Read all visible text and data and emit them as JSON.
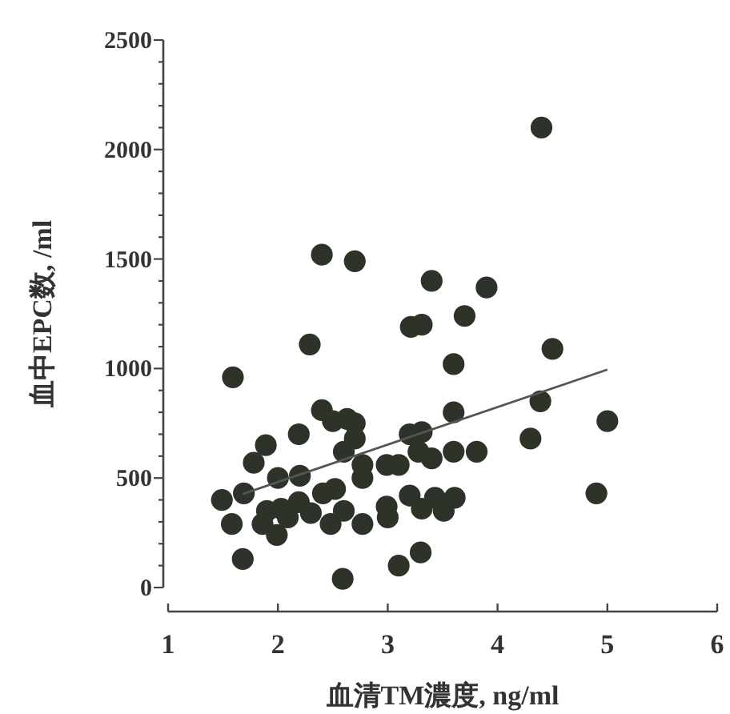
{
  "chart_data": {
    "type": "scatter",
    "xlabel": "血清TM濃度, ng/ml",
    "ylabel": "血中EPC数, /ml",
    "xlim": [
      1,
      6
    ],
    "ylim": [
      0,
      2500
    ],
    "xticks": [
      1,
      2,
      3,
      4,
      5,
      6
    ],
    "yticks": [
      0,
      {
        "value": 100,
        "label": null
      },
      {
        "value": 200,
        "label": null
      },
      {
        "value": 300,
        "label": null
      },
      {
        "value": 400,
        "label": null
      },
      500,
      {
        "value": 600,
        "label": null
      },
      {
        "value": 700,
        "label": null
      },
      {
        "value": 800,
        "label": null
      },
      {
        "value": 900,
        "label": null
      },
      1000,
      {
        "value": 1100,
        "label": null
      },
      {
        "value": 1200,
        "label": null
      },
      {
        "value": 1300,
        "label": null
      },
      {
        "value": 1400,
        "label": null
      },
      1500,
      {
        "value": 1600,
        "label": null
      },
      {
        "value": 1700,
        "label": null
      },
      {
        "value": 1800,
        "label": null
      },
      {
        "value": 1900,
        "label": null
      },
      2000,
      {
        "value": 2100,
        "label": null
      },
      {
        "value": 2200,
        "label": null
      },
      {
        "value": 2300,
        "label": null
      },
      {
        "value": 2400,
        "label": null
      },
      2500
    ],
    "grid": false,
    "series": [
      {
        "marker": "circle",
        "color": "#2d3328",
        "x": [
          4.4,
          2.4,
          2.7,
          3.4,
          3.9,
          3.21,
          3.31,
          3.7,
          2.29,
          4.5,
          1.59,
          3.6,
          4.39,
          3.6,
          5.0,
          2.4,
          2.5,
          2.63,
          2.7,
          2.19,
          1.89,
          1.78,
          2.7,
          2.6,
          3.2,
          3.31,
          4.3,
          3.28,
          3.4,
          3.6,
          3.81,
          2.99,
          3.1,
          2.77,
          2.77,
          2.0,
          2.2,
          1.49,
          1.69,
          1.9,
          2.03,
          2.19,
          2.3,
          2.41,
          2.52,
          2.48,
          2.6,
          2.77,
          2.99,
          3.0,
          3.2,
          3.31,
          3.43,
          3.51,
          3.61,
          1.58,
          1.86,
          1.99,
          1.68,
          3.1,
          3.3,
          2.59,
          4.9,
          2.09
        ],
        "values": [
          2100,
          1520,
          1490,
          1400,
          1370,
          1190,
          1200,
          1240,
          1110,
          1090,
          960,
          1020,
          850,
          800,
          760,
          810,
          760,
          770,
          750,
          700,
          650,
          570,
          680,
          620,
          700,
          710,
          680,
          620,
          590,
          620,
          620,
          560,
          560,
          560,
          500,
          500,
          510,
          400,
          430,
          350,
          360,
          390,
          340,
          430,
          450,
          290,
          350,
          290,
          370,
          320,
          420,
          360,
          410,
          350,
          410,
          290,
          290,
          240,
          130,
          100,
          160,
          40,
          430,
          320
        ]
      },
      {
        "type": "line",
        "color": "#555555",
        "x": [
          1.68,
          5.0
        ],
        "values": [
          427,
          995
        ]
      }
    ]
  }
}
